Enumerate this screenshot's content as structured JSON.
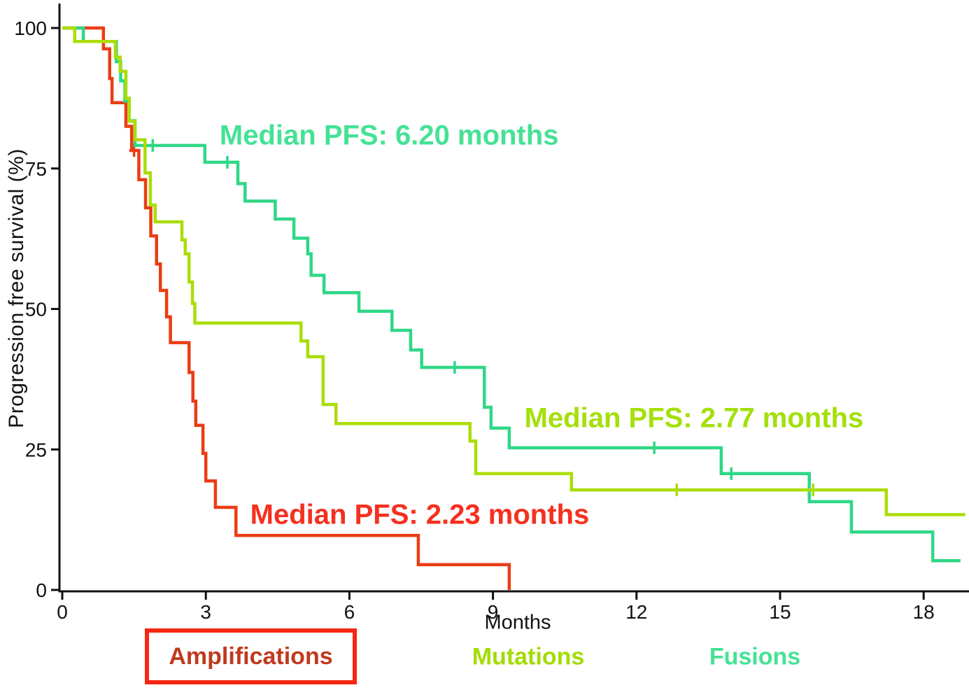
{
  "chart_data": {
    "type": "line",
    "subtype": "kaplan-meier-step-curves",
    "title": "",
    "xlabel": "Months",
    "ylabel": "Progression free survival (%)",
    "xlim": [
      0,
      18.95
    ],
    "ylim": [
      0,
      100
    ],
    "xticks": [
      0,
      3,
      6,
      9,
      12,
      15,
      18
    ],
    "yticks": [
      0,
      25,
      50,
      75,
      100
    ],
    "grid": false,
    "axis_color": "#111111",
    "legend_position": "bottom",
    "series": [
      {
        "name": "Amplifications",
        "median_pfs_months": 2.23,
        "color": "#ea3d14",
        "legend_color": "#c03a1e",
        "legend_boxed": true,
        "annotation": {
          "text": "Median PFS: 2.23 months",
          "color": "#f5301f",
          "x": 7.47,
          "y": 13.3
        },
        "steps": [
          [
            0,
            100
          ],
          [
            0.86,
            96.3
          ],
          [
            0.99,
            91.0
          ],
          [
            1.04,
            86.7
          ],
          [
            1.33,
            82.5
          ],
          [
            1.45,
            78.2
          ],
          [
            1.6,
            73.0
          ],
          [
            1.74,
            68.0
          ],
          [
            1.85,
            63.0
          ],
          [
            1.97,
            58.0
          ],
          [
            2.05,
            53.3
          ],
          [
            2.18,
            48.6
          ],
          [
            2.26,
            44.0
          ],
          [
            2.65,
            38.7
          ],
          [
            2.73,
            33.6
          ],
          [
            2.79,
            29.3
          ],
          [
            2.94,
            24.3
          ],
          [
            3.0,
            19.4
          ],
          [
            3.2,
            14.7
          ],
          [
            3.63,
            9.7
          ],
          [
            7.44,
            4.5
          ],
          [
            9.34,
            0
          ]
        ],
        "end": 9.34,
        "censors": [
          [
            1.5,
            78.2
          ]
        ]
      },
      {
        "name": "Mutations",
        "median_pfs_months": 2.77,
        "color": "#abdd08",
        "legend_color": "#a2dc00",
        "legend_boxed": false,
        "annotation": {
          "text": "Median PFS: 2.77 months",
          "color": "#a4e00a",
          "x": 13.2,
          "y": 30.5
        },
        "steps": [
          [
            0,
            100
          ],
          [
            0.26,
            97.6
          ],
          [
            1.11,
            94.8
          ],
          [
            1.21,
            92.3
          ],
          [
            1.33,
            87.5
          ],
          [
            1.4,
            83.4
          ],
          [
            1.52,
            80.1
          ],
          [
            1.73,
            74.2
          ],
          [
            1.84,
            68.5
          ],
          [
            1.94,
            65.5
          ],
          [
            2.5,
            62.3
          ],
          [
            2.57,
            59.8
          ],
          [
            2.65,
            54.8
          ],
          [
            2.72,
            51.0
          ],
          [
            2.77,
            47.5
          ],
          [
            4.99,
            44.3
          ],
          [
            5.13,
            41.5
          ],
          [
            5.45,
            33.0
          ],
          [
            5.72,
            29.6
          ],
          [
            8.52,
            26.5
          ],
          [
            8.64,
            20.7
          ],
          [
            10.64,
            17.8
          ],
          [
            17.22,
            13.4
          ]
        ],
        "end": 18.87,
        "censors": [
          [
            12.84,
            17.8
          ],
          [
            15.69,
            17.8
          ]
        ]
      },
      {
        "name": "Fusions",
        "median_pfs_months": 6.2,
        "color": "#2fd786",
        "legend_color": "#45e295",
        "legend_boxed": false,
        "annotation": {
          "text": "Median PFS: 6.20 months",
          "color": "#45e295",
          "x": 6.83,
          "y": 80.8
        },
        "steps": [
          [
            0,
            100
          ],
          [
            0.44,
            97.6
          ],
          [
            1.13,
            94.0
          ],
          [
            1.22,
            90.6
          ],
          [
            1.31,
            87.0
          ],
          [
            1.4,
            83.5
          ],
          [
            1.52,
            79.1
          ],
          [
            2.98,
            76.1
          ],
          [
            3.67,
            72.3
          ],
          [
            3.82,
            69.2
          ],
          [
            4.45,
            66.0
          ],
          [
            4.84,
            62.6
          ],
          [
            5.13,
            59.8
          ],
          [
            5.2,
            56.0
          ],
          [
            5.47,
            52.9
          ],
          [
            6.2,
            49.6
          ],
          [
            6.89,
            46.2
          ],
          [
            7.28,
            42.7
          ],
          [
            7.51,
            39.6
          ],
          [
            8.82,
            32.5
          ],
          [
            8.96,
            28.8
          ],
          [
            9.34,
            25.3
          ],
          [
            13.77,
            20.7
          ],
          [
            15.61,
            15.7
          ],
          [
            16.49,
            10.3
          ],
          [
            18.19,
            5.2
          ]
        ],
        "end": 18.77,
        "censors": [
          [
            1.89,
            79.1
          ],
          [
            3.45,
            76.1
          ],
          [
            8.2,
            39.6
          ],
          [
            12.37,
            25.3
          ],
          [
            13.98,
            20.7
          ]
        ]
      }
    ]
  }
}
